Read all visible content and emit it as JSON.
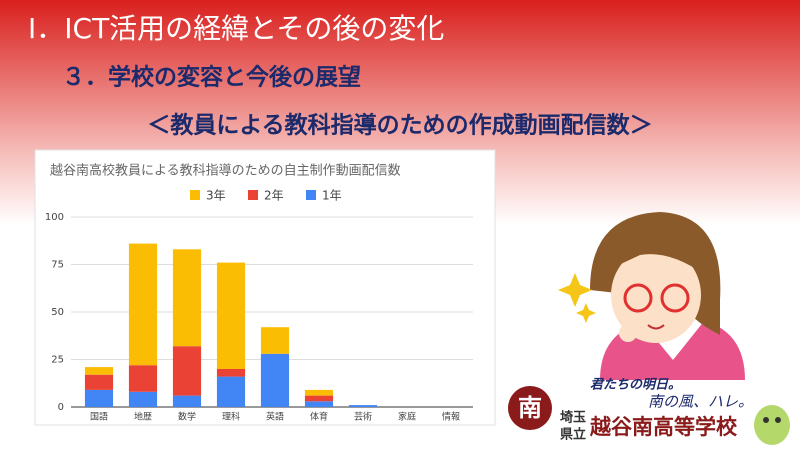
{
  "header": {
    "title": "Ⅰ．ICT活用の経緯とその後の変化",
    "section": "３．学校の変容と今後の展望",
    "subtitle": "＜教員による教科指導のための作成動画配信数＞"
  },
  "chart_data": {
    "type": "stacked_bar",
    "title": "越谷南高校教員による教科指導のための自主制作動画配信数",
    "categories": [
      "国語",
      "地歴",
      "数学",
      "理科",
      "英語",
      "体育",
      "芸術",
      "家庭",
      "情報"
    ],
    "series": [
      {
        "name": "3年",
        "color": "#fbbc04",
        "values": [
          4,
          64,
          51,
          56,
          14,
          3,
          0,
          0,
          0
        ]
      },
      {
        "name": "2年",
        "color": "#ea4335",
        "values": [
          8,
          14,
          26,
          4,
          0,
          3,
          0,
          0,
          0
        ]
      },
      {
        "name": "1年",
        "color": "#4285f4",
        "values": [
          9,
          8,
          6,
          16,
          28,
          3,
          1,
          0,
          0
        ]
      }
    ],
    "ylim": [
      0,
      100
    ],
    "yticks": [
      0,
      25,
      50,
      75,
      100
    ],
    "grid": true,
    "legend": "top"
  },
  "logo": {
    "crest": "南",
    "slogan1": "君たちの明日。",
    "slogan2": "南の風、ハレ。",
    "pref": "埼玉",
    "kenritsu": "県立",
    "school": "越谷南高等学校"
  }
}
